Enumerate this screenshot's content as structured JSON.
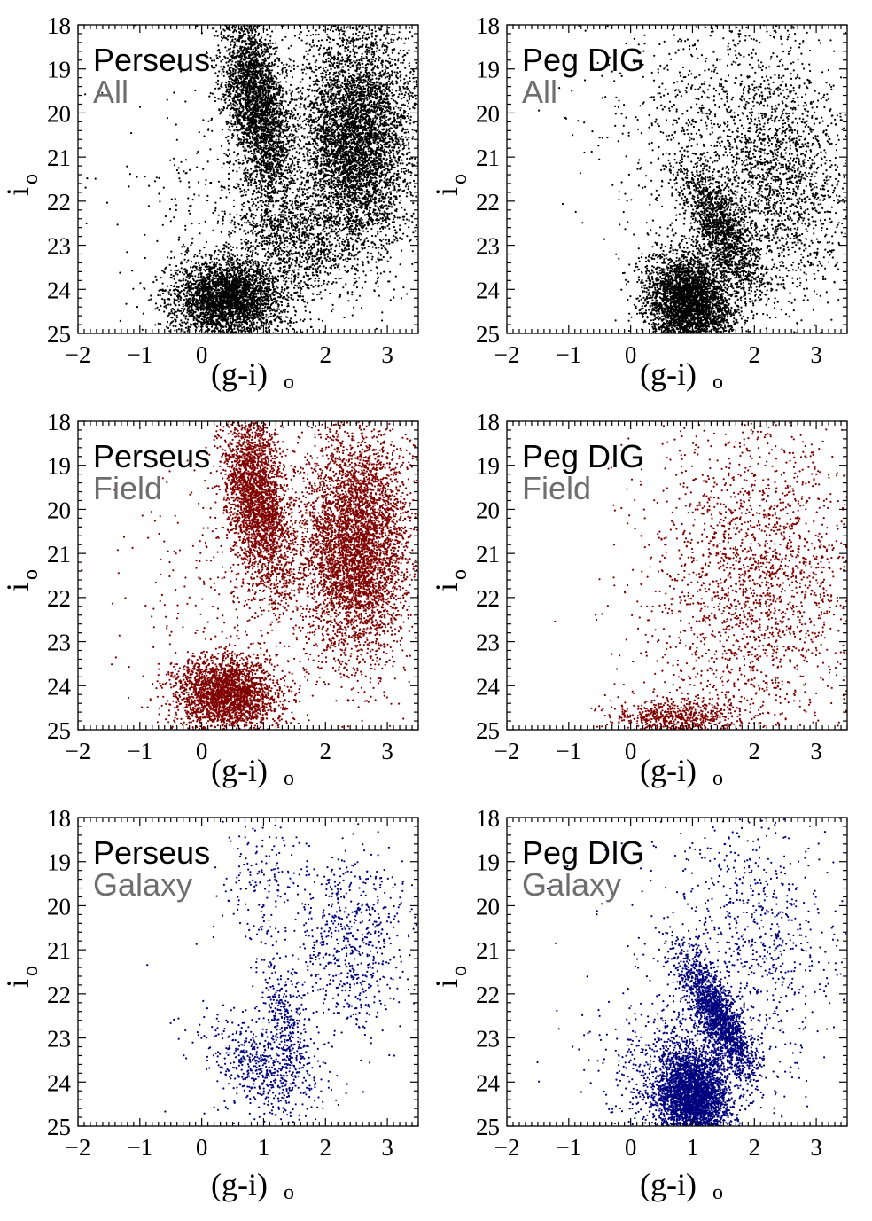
{
  "chart_data": [
    {
      "type": "scatter",
      "panel": "Perseus All",
      "title": "Perseus",
      "subtitle": "All",
      "color": "#000000",
      "xlabel_main": "(g-i)",
      "xlabel_sub": "o",
      "ylabel_main": "i",
      "ylabel_sub": "o",
      "xlim": [
        -2,
        3.5
      ],
      "ylim": [
        25,
        18
      ],
      "x_ticks": [
        {
          "v": -2,
          "t": "−2"
        },
        {
          "v": -1,
          "t": "−1"
        },
        {
          "v": 0,
          "t": "0"
        },
        {
          "v": 2,
          "t": "2"
        },
        {
          "v": 3,
          "t": "3"
        }
      ],
      "y_ticks": [
        {
          "v": 18,
          "t": "18"
        },
        {
          "v": 19,
          "t": "19"
        },
        {
          "v": 20,
          "t": "20"
        },
        {
          "v": 21,
          "t": "21"
        },
        {
          "v": 22,
          "t": "22"
        },
        {
          "v": 23,
          "t": "23"
        },
        {
          "v": 24,
          "t": "24"
        },
        {
          "v": 25,
          "t": "25"
        }
      ],
      "components": [
        {
          "cx": 0.9,
          "cy": 19.8,
          "sx": 0.25,
          "sy": 1.1,
          "n": 3200,
          "rot": -0.12
        },
        {
          "cx": 2.5,
          "cy": 20.6,
          "sx": 0.45,
          "sy": 1.3,
          "n": 5200,
          "rot": 0.0
        },
        {
          "cx": 0.45,
          "cy": 24.2,
          "sx": 0.45,
          "sy": 0.45,
          "n": 3400,
          "rot": -0.45
        },
        {
          "cx": 1.4,
          "cy": 22.8,
          "sx": 0.4,
          "sy": 0.7,
          "n": 900,
          "rot": -0.6
        },
        {
          "cx": 0.6,
          "cy": 22.0,
          "sx": 1.0,
          "sy": 2.0,
          "n": 400,
          "rot": 0.0
        }
      ]
    },
    {
      "type": "scatter",
      "panel": "Peg DIG All",
      "title": "Peg DIG",
      "subtitle": "All",
      "color": "#000000",
      "xlabel_main": "(g-i)",
      "xlabel_sub": "o",
      "ylabel_main": "i",
      "ylabel_sub": "o",
      "xlim": [
        -2,
        3.5
      ],
      "ylim": [
        25,
        18
      ],
      "x_ticks": [
        {
          "v": -2,
          "t": "−2"
        },
        {
          "v": -1,
          "t": "−1"
        },
        {
          "v": 0,
          "t": "0"
        },
        {
          "v": 2,
          "t": "2"
        },
        {
          "v": 3,
          "t": "3"
        }
      ],
      "y_ticks": [
        {
          "v": 18,
          "t": "18"
        },
        {
          "v": 19,
          "t": "19"
        },
        {
          "v": 20,
          "t": "20"
        },
        {
          "v": 21,
          "t": "21"
        },
        {
          "v": 22,
          "t": "22"
        },
        {
          "v": 23,
          "t": "23"
        },
        {
          "v": 24,
          "t": "24"
        },
        {
          "v": 25,
          "t": "25"
        }
      ],
      "components": [
        {
          "cx": 0.95,
          "cy": 24.3,
          "sx": 0.35,
          "sy": 0.55,
          "n": 3600,
          "rot": -0.15
        },
        {
          "cx": 1.45,
          "cy": 22.6,
          "sx": 0.2,
          "sy": 0.8,
          "n": 1400,
          "rot": -0.35
        },
        {
          "cx": 2.4,
          "cy": 21.5,
          "sx": 0.55,
          "sy": 1.4,
          "n": 1600,
          "rot": 0.0
        },
        {
          "cx": 1.5,
          "cy": 20.5,
          "sx": 1.0,
          "sy": 1.8,
          "n": 1100,
          "rot": 0.0
        }
      ]
    },
    {
      "type": "scatter",
      "panel": "Perseus Field",
      "title": "Perseus",
      "subtitle": "Field",
      "color": "#800000",
      "xlabel_main": "(g-i)",
      "xlabel_sub": "o",
      "ylabel_main": "i",
      "ylabel_sub": "o",
      "xlim": [
        -2,
        3.5
      ],
      "ylim": [
        25,
        18
      ],
      "x_ticks": [
        {
          "v": -2,
          "t": "−2"
        },
        {
          "v": -1,
          "t": "−1"
        },
        {
          "v": 0,
          "t": "0"
        },
        {
          "v": 2,
          "t": "2"
        },
        {
          "v": 3,
          "t": "3"
        }
      ],
      "y_ticks": [
        {
          "v": 18,
          "t": "18"
        },
        {
          "v": 19,
          "t": "19"
        },
        {
          "v": 20,
          "t": "20"
        },
        {
          "v": 21,
          "t": "21"
        },
        {
          "v": 22,
          "t": "22"
        },
        {
          "v": 23,
          "t": "23"
        },
        {
          "v": 24,
          "t": "24"
        },
        {
          "v": 25,
          "t": "25"
        }
      ],
      "components": [
        {
          "cx": 0.9,
          "cy": 19.8,
          "sx": 0.25,
          "sy": 1.1,
          "n": 2800,
          "rot": -0.12
        },
        {
          "cx": 2.5,
          "cy": 20.8,
          "sx": 0.45,
          "sy": 1.3,
          "n": 4600,
          "rot": 0.0
        },
        {
          "cx": 0.4,
          "cy": 24.2,
          "sx": 0.4,
          "sy": 0.42,
          "n": 2600,
          "rot": -0.45
        },
        {
          "cx": 0.6,
          "cy": 22.2,
          "sx": 0.9,
          "sy": 1.8,
          "n": 350,
          "rot": 0.0
        }
      ]
    },
    {
      "type": "scatter",
      "panel": "Peg DIG Field",
      "title": "Peg DIG",
      "subtitle": "Field",
      "color": "#800000",
      "xlabel_main": "(g-i)",
      "xlabel_sub": "o",
      "ylabel_main": "i",
      "ylabel_sub": "o",
      "xlim": [
        -2,
        3.5
      ],
      "ylim": [
        25,
        18
      ],
      "x_ticks": [
        {
          "v": -2,
          "t": "−2"
        },
        {
          "v": -1,
          "t": "−1"
        },
        {
          "v": 0,
          "t": "0"
        },
        {
          "v": 2,
          "t": "2"
        },
        {
          "v": 3,
          "t": "3"
        }
      ],
      "y_ticks": [
        {
          "v": 18,
          "t": "18"
        },
        {
          "v": 19,
          "t": "19"
        },
        {
          "v": 20,
          "t": "20"
        },
        {
          "v": 21,
          "t": "21"
        },
        {
          "v": 22,
          "t": "22"
        },
        {
          "v": 23,
          "t": "23"
        },
        {
          "v": 24,
          "t": "24"
        },
        {
          "v": 25,
          "t": "25"
        }
      ],
      "components": [
        {
          "cx": 0.8,
          "cy": 24.75,
          "sx": 0.55,
          "sy": 0.22,
          "n": 700,
          "rot": 0.0
        },
        {
          "cx": 2.3,
          "cy": 21.5,
          "sx": 0.65,
          "sy": 1.7,
          "n": 1400,
          "rot": 0.0
        },
        {
          "cx": 1.3,
          "cy": 21.5,
          "sx": 0.75,
          "sy": 1.9,
          "n": 700,
          "rot": 0.0
        }
      ]
    },
    {
      "type": "scatter",
      "panel": "Perseus Galaxy",
      "title": "Perseus",
      "subtitle": "Galaxy",
      "color": "#00007f",
      "xlabel_main": "(g-i)",
      "xlabel_sub": "o",
      "ylabel_main": "i",
      "ylabel_sub": "o",
      "xlim": [
        -2,
        3.5
      ],
      "ylim": [
        25,
        18
      ],
      "x_ticks": [
        {
          "v": -2,
          "t": "−2"
        },
        {
          "v": -1,
          "t": "−1"
        },
        {
          "v": 0,
          "t": "0"
        },
        {
          "v": 1,
          "t": "1"
        },
        {
          "v": 2,
          "t": "2"
        },
        {
          "v": 3,
          "t": "3"
        }
      ],
      "y_ticks": [
        {
          "v": 18,
          "t": "18"
        },
        {
          "v": 19,
          "t": "19"
        },
        {
          "v": 20,
          "t": "20"
        },
        {
          "v": 21,
          "t": "21"
        },
        {
          "v": 22,
          "t": "22"
        },
        {
          "v": 23,
          "t": "23"
        },
        {
          "v": 24,
          "t": "24"
        },
        {
          "v": 25,
          "t": "25"
        }
      ],
      "components": [
        {
          "cx": 1.0,
          "cy": 23.7,
          "sx": 0.35,
          "sy": 0.6,
          "n": 550,
          "rot": -0.55
        },
        {
          "cx": 1.35,
          "cy": 22.5,
          "sx": 0.18,
          "sy": 0.7,
          "n": 300,
          "rot": -0.2
        },
        {
          "cx": 2.4,
          "cy": 20.8,
          "sx": 0.45,
          "sy": 1.1,
          "n": 650,
          "rot": 0.0
        },
        {
          "cx": 1.0,
          "cy": 19.5,
          "sx": 0.4,
          "sy": 0.9,
          "n": 180,
          "rot": 0.0
        },
        {
          "cx": 0.5,
          "cy": 23.5,
          "sx": 0.8,
          "sy": 1.2,
          "n": 60,
          "rot": 0.0
        }
      ]
    },
    {
      "type": "scatter",
      "panel": "Peg DIG Galaxy",
      "title": "Peg DIG",
      "subtitle": "Galaxy",
      "color": "#00007f",
      "xlabel_main": "(g-i)",
      "xlabel_sub": "o",
      "ylabel_main": "i",
      "ylabel_sub": "o",
      "xlim": [
        -2,
        3.5
      ],
      "ylim": [
        25,
        18
      ],
      "x_ticks": [
        {
          "v": -2,
          "t": "−2"
        },
        {
          "v": -1,
          "t": "−1"
        },
        {
          "v": 0,
          "t": "0"
        },
        {
          "v": 1,
          "t": "1"
        },
        {
          "v": 2,
          "t": "2"
        },
        {
          "v": 3,
          "t": "3"
        }
      ],
      "y_ticks": [
        {
          "v": 18,
          "t": "18"
        },
        {
          "v": 19,
          "t": "19"
        },
        {
          "v": 20,
          "t": "20"
        },
        {
          "v": 21,
          "t": "21"
        },
        {
          "v": 22,
          "t": "22"
        },
        {
          "v": 23,
          "t": "23"
        },
        {
          "v": 24,
          "t": "24"
        },
        {
          "v": 25,
          "t": "25"
        }
      ],
      "components": [
        {
          "cx": 1.0,
          "cy": 24.3,
          "sx": 0.28,
          "sy": 0.55,
          "n": 3200,
          "rot": -0.1
        },
        {
          "cx": 1.4,
          "cy": 22.5,
          "sx": 0.17,
          "sy": 0.75,
          "n": 1800,
          "rot": -0.35
        },
        {
          "cx": 0.6,
          "cy": 23.8,
          "sx": 0.6,
          "sy": 0.9,
          "n": 500,
          "rot": 0.0
        },
        {
          "cx": 2.1,
          "cy": 21.0,
          "sx": 0.7,
          "sy": 1.5,
          "n": 650,
          "rot": 0.0
        },
        {
          "cx": 1.6,
          "cy": 20.2,
          "sx": 1.2,
          "sy": 1.8,
          "n": 250,
          "rot": 0.0
        }
      ]
    }
  ]
}
